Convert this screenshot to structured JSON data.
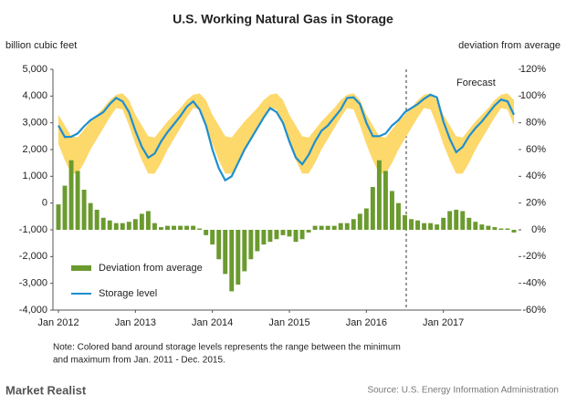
{
  "chart_data": {
    "type": "combo",
    "title": "U.S. Working Natural Gas in Storage",
    "y_label": "billion cubic feet",
    "y2_label": "deviation from average",
    "annotation": "Forecast",
    "notes": [
      "Note:  Colored band around storage levels represents the range between the minimum",
      "and maximum from Jan. 2011 - Dec. 2015."
    ],
    "source": "Source: U.S. Energy Information Administration",
    "brand": "Market Realist",
    "categories": [
      "Jan 2012",
      null,
      null,
      null,
      null,
      null,
      null,
      null,
      null,
      null,
      null,
      null,
      "Jan 2013",
      null,
      null,
      null,
      null,
      null,
      null,
      null,
      null,
      null,
      null,
      null,
      "Jan 2014",
      null,
      null,
      null,
      null,
      null,
      null,
      null,
      null,
      null,
      null,
      null,
      "Jan 2015",
      null,
      null,
      null,
      null,
      null,
      null,
      null,
      null,
      null,
      null,
      null,
      "Jan 2016",
      null,
      null,
      null,
      null,
      null,
      null,
      null,
      null,
      null,
      null,
      null,
      "Jan 2017",
      null,
      null,
      null,
      null,
      null,
      null,
      null,
      null,
      null,
      null,
      null
    ],
    "series": [
      {
        "name": "Deviation from average",
        "type": "bar",
        "axis": "y2",
        "color": "#6b9a2f",
        "values": [
          19,
          33,
          52,
          44,
          30,
          20,
          15,
          9,
          7,
          5,
          5,
          6,
          8,
          12,
          14,
          5,
          2,
          3,
          3,
          3,
          3,
          3,
          1,
          -4,
          -11,
          -22,
          -33,
          -46,
          -41,
          -31,
          -22,
          -16,
          -11,
          -9,
          -7,
          -4,
          -5,
          -9,
          -7,
          -2,
          3,
          3,
          3,
          3,
          5,
          5,
          8,
          12,
          16,
          32,
          52,
          44,
          29,
          20,
          11,
          8,
          7,
          5,
          5,
          4,
          9,
          14,
          15,
          14,
          9,
          6,
          4,
          3,
          2,
          1,
          1,
          -2
        ]
      },
      {
        "name": "Storage level",
        "type": "line",
        "color": "#1e8fcf",
        "values": [
          2900,
          2470,
          2480,
          2600,
          2870,
          3100,
          3250,
          3400,
          3700,
          3930,
          3800,
          3400,
          2700,
          2100,
          1700,
          1850,
          2300,
          2650,
          2950,
          3250,
          3600,
          3800,
          3500,
          2900,
          2000,
          1300,
          850,
          1000,
          1500,
          2000,
          2400,
          2800,
          3200,
          3550,
          3400,
          3000,
          2300,
          1700,
          1450,
          1800,
          2300,
          2700,
          2900,
          3200,
          3500,
          3930,
          3950,
          3700,
          3000,
          2500,
          2500,
          2600,
          2900,
          3100,
          3400,
          3550,
          3700,
          3900,
          4050,
          3950,
          3050,
          2400,
          1900,
          2100,
          2500,
          2800,
          3050,
          3350,
          3650,
          3870,
          3800,
          3300
        ]
      }
    ],
    "band": {
      "color": "#fdd86b",
      "lower": [
        2200,
        1600,
        1100,
        1100,
        1500,
        2000,
        2400,
        2800,
        3200,
        3550,
        3500,
        2900,
        2200,
        1600,
        1100,
        1100,
        1500,
        2000,
        2400,
        2800,
        3200,
        3550,
        3500,
        2900,
        2200,
        1600,
        1100,
        1100,
        1500,
        2000,
        2400,
        2800,
        3200,
        3550,
        3500,
        2900,
        2200,
        1600,
        1100,
        1100,
        1500,
        2000,
        2400,
        2800,
        3200,
        3550,
        3500,
        2900,
        2200,
        1600,
        1100,
        1100,
        1500,
        2000,
        2400,
        2800,
        3200,
        3550,
        3500,
        2900,
        2200,
        1600,
        1100,
        1100,
        1500,
        2000,
        2400,
        2800,
        3200,
        3550,
        3500,
        2900
      ],
      "upper": [
        3300,
        2900,
        2500,
        2450,
        2750,
        3050,
        3300,
        3550,
        3850,
        4050,
        4100,
        3850,
        3300,
        2900,
        2500,
        2450,
        2750,
        3050,
        3300,
        3550,
        3850,
        4050,
        4100,
        3850,
        3300,
        2900,
        2500,
        2450,
        2750,
        3050,
        3300,
        3550,
        3850,
        4050,
        4100,
        3850,
        3300,
        2900,
        2500,
        2450,
        2750,
        3050,
        3300,
        3550,
        3850,
        4050,
        4100,
        3850,
        3300,
        2900,
        2500,
        2450,
        2750,
        3050,
        3300,
        3550,
        3850,
        4050,
        4100,
        3850,
        3300,
        2900,
        2500,
        2450,
        2750,
        3050,
        3300,
        3550,
        3850,
        4050,
        4100,
        3850
      ]
    },
    "ylim": [
      -4000,
      5000
    ],
    "yticks": [
      {
        "value": 5000,
        "label": "5,000"
      },
      {
        "value": 4000,
        "label": "4,000"
      },
      {
        "value": 3000,
        "label": "3,000"
      },
      {
        "value": 2000,
        "label": "2,000"
      },
      {
        "value": 1000,
        "label": "1,000"
      },
      0,
      {
        "value": -1000,
        "label": "-1,000"
      },
      {
        "value": -2000,
        "label": "-2,000"
      },
      {
        "value": -3000,
        "label": "-3,000"
      },
      {
        "value": -4000,
        "label": "-4,000"
      }
    ],
    "y2lim": [
      -60,
      120
    ],
    "y2ticks": [
      {
        "value": 120,
        "label": "120%"
      },
      {
        "value": 100,
        "label": "100%"
      },
      {
        "value": 80,
        "label": "80%"
      },
      {
        "value": 60,
        "label": "60%"
      },
      {
        "value": 40,
        "label": "40%"
      },
      {
        "value": 20,
        "label": "20%"
      },
      {
        "value": 0,
        "label": "0%"
      },
      {
        "value": -20,
        "label": "-20%"
      },
      {
        "value": -40,
        "label": "-40%"
      },
      {
        "value": -60,
        "label": "-60%"
      }
    ],
    "grid": false,
    "legend": "lower left"
  }
}
